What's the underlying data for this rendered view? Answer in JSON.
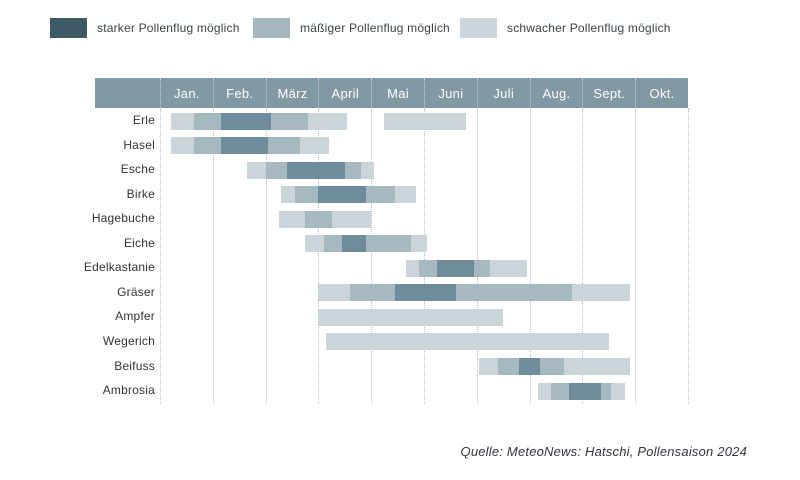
{
  "chart_data": {
    "type": "gantt",
    "title": "",
    "description": "Pollenflugkalender: monthly pollen season timeline per plant, three intensity levels",
    "x_axis": {
      "categories": [
        "Jan.",
        "Feb.",
        "März",
        "April",
        "Mai",
        "Juni",
        "Juli",
        "Aug.",
        "Sept.",
        "Okt."
      ],
      "range_months": [
        0,
        10
      ],
      "grid": "dotted-vertical"
    },
    "legend": [
      {
        "level": "stark",
        "label": "starker Pollenflug möglich",
        "color": "#3e5966"
      },
      {
        "level": "maessig",
        "label": "mäßiger Pollenflug möglich",
        "color": "#a5b6bd"
      },
      {
        "level": "schwach",
        "label": "schwacher Pollenflug möglich",
        "color": "#ccd5d9"
      }
    ],
    "bar_colors": {
      "stark": "#6e8c9b",
      "maessig": "#a6b8c0",
      "schwach": "#cbd4d9"
    },
    "rows": [
      {
        "label": "Erle",
        "segments": [
          [
            0.2,
            0.65,
            "schwach"
          ],
          [
            0.65,
            1.15,
            "maessig"
          ],
          [
            1.15,
            2.1,
            "stark"
          ],
          [
            2.1,
            2.8,
            "maessig"
          ],
          [
            2.8,
            3.55,
            "schwach"
          ],
          [
            4.25,
            5.8,
            "schwach"
          ]
        ]
      },
      {
        "label": "Hasel",
        "segments": [
          [
            0.2,
            0.65,
            "schwach"
          ],
          [
            0.65,
            1.15,
            "maessig"
          ],
          [
            1.15,
            2.05,
            "stark"
          ],
          [
            2.05,
            2.65,
            "maessig"
          ],
          [
            2.65,
            3.2,
            "schwach"
          ]
        ]
      },
      {
        "label": "Esche",
        "segments": [
          [
            1.65,
            2.0,
            "schwach"
          ],
          [
            2.0,
            2.4,
            "maessig"
          ],
          [
            2.4,
            3.5,
            "stark"
          ],
          [
            3.5,
            3.8,
            "maessig"
          ],
          [
            3.8,
            4.05,
            "schwach"
          ]
        ]
      },
      {
        "label": "Birke",
        "segments": [
          [
            2.3,
            2.55,
            "schwach"
          ],
          [
            2.55,
            3.0,
            "maessig"
          ],
          [
            3.0,
            3.9,
            "stark"
          ],
          [
            3.9,
            4.45,
            "maessig"
          ],
          [
            4.45,
            4.85,
            "schwach"
          ]
        ]
      },
      {
        "label": "Hagebuche",
        "segments": [
          [
            2.25,
            2.75,
            "schwach"
          ],
          [
            2.75,
            3.25,
            "maessig"
          ],
          [
            3.25,
            4.0,
            "schwach"
          ]
        ]
      },
      {
        "label": "Eiche",
        "segments": [
          [
            2.75,
            3.1,
            "schwach"
          ],
          [
            3.1,
            3.45,
            "maessig"
          ],
          [
            3.45,
            3.9,
            "stark"
          ],
          [
            3.9,
            4.75,
            "maessig"
          ],
          [
            4.75,
            5.05,
            "schwach"
          ]
        ]
      },
      {
        "label": "Edelkastanie",
        "segments": [
          [
            4.65,
            4.9,
            "schwach"
          ],
          [
            4.9,
            5.25,
            "maessig"
          ],
          [
            5.25,
            5.95,
            "stark"
          ],
          [
            5.95,
            6.25,
            "maessig"
          ],
          [
            6.25,
            6.95,
            "schwach"
          ]
        ]
      },
      {
        "label": "Gräser",
        "segments": [
          [
            3.0,
            3.6,
            "schwach"
          ],
          [
            3.6,
            4.45,
            "maessig"
          ],
          [
            4.45,
            5.6,
            "stark"
          ],
          [
            5.6,
            7.8,
            "maessig"
          ],
          [
            7.8,
            8.9,
            "schwach"
          ]
        ]
      },
      {
        "label": "Ampfer",
        "segments": [
          [
            3.0,
            6.5,
            "schwach"
          ]
        ]
      },
      {
        "label": "Wegerich",
        "segments": [
          [
            3.15,
            8.5,
            "schwach"
          ]
        ]
      },
      {
        "label": "Beifuss",
        "segments": [
          [
            6.05,
            6.4,
            "schwach"
          ],
          [
            6.4,
            6.8,
            "maessig"
          ],
          [
            6.8,
            7.2,
            "stark"
          ],
          [
            7.2,
            7.65,
            "maessig"
          ],
          [
            7.65,
            8.9,
            "schwach"
          ]
        ]
      },
      {
        "label": "Ambrosia",
        "segments": [
          [
            7.15,
            7.4,
            "schwach"
          ],
          [
            7.4,
            7.75,
            "maessig"
          ],
          [
            7.75,
            8.35,
            "stark"
          ],
          [
            8.35,
            8.55,
            "maessig"
          ],
          [
            8.55,
            8.8,
            "schwach"
          ]
        ]
      }
    ],
    "source": "Quelle: MeteoNews: Hatschi, Pollensaison 2024"
  },
  "colors": {
    "background": "#ffffff",
    "header_bg": "#8298a3",
    "header_text": "#ffffff",
    "grid_line": "#b3bcc1",
    "label_text": "#2f3439",
    "source_text": "#33363e"
  }
}
